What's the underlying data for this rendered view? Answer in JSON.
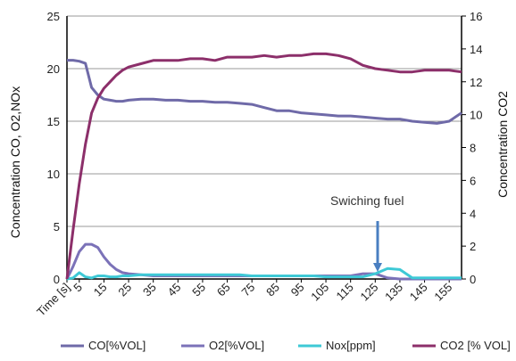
{
  "chart_data": {
    "type": "line",
    "xlabel": "Time [s]",
    "x_tick_labels": [
      "Time [s]",
      "5",
      "15",
      "25",
      "35",
      "45",
      "55",
      "65",
      "75",
      "85",
      "95",
      "105",
      "115",
      "125",
      "135",
      "145",
      "155"
    ],
    "x": [
      0,
      2.5,
      5,
      7.5,
      10,
      12.5,
      15,
      17.5,
      20,
      22.5,
      25,
      30,
      35,
      40,
      45,
      50,
      55,
      60,
      65,
      70,
      75,
      80,
      85,
      90,
      95,
      100,
      105,
      110,
      115,
      120,
      125,
      130,
      135,
      140,
      145,
      150,
      155,
      160
    ],
    "y_left": {
      "label": "Concentration CO, O2,NOx",
      "lim": [
        0,
        25
      ],
      "ticks": [
        0,
        5,
        10,
        15,
        20,
        25
      ]
    },
    "y_right": {
      "label": "Concentration CO2",
      "lim": [
        0,
        16
      ],
      "ticks": [
        0,
        2,
        4,
        6,
        8,
        10,
        12,
        14,
        16
      ]
    },
    "grid": "horizontal",
    "legend_position": "bottom",
    "series": [
      {
        "name": "CO[%VOL]",
        "axis": "left",
        "color": "#6f6aa8",
        "values": [
          20.8,
          20.8,
          20.7,
          20.5,
          18.2,
          17.5,
          17.1,
          17.0,
          16.9,
          16.9,
          17.0,
          17.1,
          17.1,
          17.0,
          17.0,
          16.9,
          16.9,
          16.8,
          16.8,
          16.7,
          16.6,
          16.3,
          16.0,
          16.0,
          15.8,
          15.7,
          15.6,
          15.5,
          15.5,
          15.4,
          15.3,
          15.2,
          15.2,
          15.0,
          14.9,
          14.8,
          15.0,
          15.8
        ]
      },
      {
        "name": "O2[%VOL]",
        "axis": "left",
        "color": "#7b72b8",
        "values": [
          0.0,
          1.2,
          2.6,
          3.3,
          3.3,
          3.0,
          2.1,
          1.4,
          0.9,
          0.6,
          0.5,
          0.4,
          0.3,
          0.3,
          0.3,
          0.3,
          0.3,
          0.3,
          0.3,
          0.3,
          0.3,
          0.3,
          0.3,
          0.3,
          0.3,
          0.3,
          0.3,
          0.3,
          0.3,
          0.5,
          0.5,
          0.1,
          0.0,
          0.0,
          0.0,
          0.0,
          0.0,
          0.0
        ]
      },
      {
        "name": "Nox[ppm]",
        "axis": "left",
        "color": "#3ec9d6",
        "values": [
          0.0,
          0.1,
          0.6,
          0.2,
          0.1,
          0.3,
          0.3,
          0.2,
          0.2,
          0.3,
          0.3,
          0.4,
          0.4,
          0.4,
          0.4,
          0.4,
          0.4,
          0.4,
          0.4,
          0.4,
          0.3,
          0.3,
          0.3,
          0.3,
          0.3,
          0.3,
          0.2,
          0.2,
          0.2,
          0.2,
          0.5,
          1.0,
          0.9,
          0.1,
          0.1,
          0.1,
          0.1,
          0.1
        ]
      },
      {
        "name": "CO2 [% VOL]",
        "axis": "right",
        "color": "#8c2f6a",
        "values": [
          0.0,
          3.0,
          5.8,
          8.2,
          10.1,
          11.0,
          11.6,
          12.0,
          12.4,
          12.7,
          12.9,
          13.1,
          13.3,
          13.3,
          13.3,
          13.4,
          13.4,
          13.3,
          13.5,
          13.5,
          13.5,
          13.6,
          13.5,
          13.6,
          13.6,
          13.7,
          13.7,
          13.6,
          13.4,
          13.0,
          12.8,
          12.7,
          12.6,
          12.6,
          12.7,
          12.7,
          12.7,
          12.6
        ]
      }
    ],
    "annotations": [
      {
        "text": "Swiching fuel",
        "x": 123,
        "y_left": 0.6
      }
    ]
  }
}
